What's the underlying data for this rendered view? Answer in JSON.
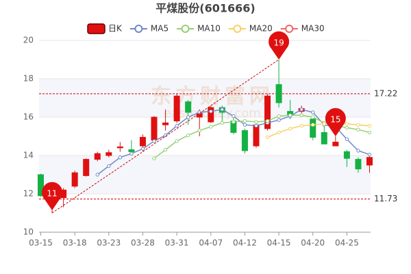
{
  "chart_data": {
    "type": "candlestick",
    "title": "平煤股份(601666)",
    "watermark": "东方财富网",
    "watermark_sub": "eastmoney.com",
    "categories": [
      "03-15",
      null,
      null,
      "03-18",
      null,
      null,
      "03-23",
      null,
      null,
      "03-28",
      null,
      null,
      "03-31",
      null,
      null,
      "04-07",
      null,
      null,
      "04-12",
      null,
      null,
      "04-15",
      null,
      null,
      "04-20",
      null,
      null,
      "04-25",
      null,
      null
    ],
    "candle_name": "日K",
    "up_color": "#e01010",
    "down_color": "#14b143",
    "candles": [
      {
        "open": 13.0,
        "close": 11.9,
        "low": 11.85,
        "high": 13.05
      },
      {
        "open": 11.9,
        "close": 12.2,
        "low": 11,
        "high": 12.4
      },
      {
        "open": 11.8,
        "close": 12.2,
        "low": 11.3,
        "high": 12.3
      },
      {
        "open": 12.4,
        "close": 13.1,
        "low": 12.3,
        "high": 13.2
      },
      {
        "open": 12.95,
        "close": 13.8,
        "low": 12.9,
        "high": 13.85
      },
      {
        "open": 13.8,
        "close": 14.1,
        "low": 13.7,
        "high": 14.2
      },
      {
        "open": 14.0,
        "close": 14.15,
        "low": 13.9,
        "high": 14.3
      },
      {
        "open": 14.4,
        "close": 14.45,
        "low": 14.2,
        "high": 14.7
      },
      {
        "open": 14.3,
        "close": 14.2,
        "low": 14.0,
        "high": 14.8
      },
      {
        "open": 14.5,
        "close": 14.95,
        "low": 14.2,
        "high": 15.1
      },
      {
        "open": 14.8,
        "close": 16.0,
        "low": 14.7,
        "high": 16.05
      },
      {
        "open": 15.6,
        "close": 15.7,
        "low": 15.3,
        "high": 16.4
      },
      {
        "open": 15.8,
        "close": 17.1,
        "low": 15.7,
        "high": 17.2
      },
      {
        "open": 16.8,
        "close": 16.25,
        "low": 15.6,
        "high": 16.9
      },
      {
        "open": 16.0,
        "close": 16.2,
        "low": 15.0,
        "high": 16.4
      },
      {
        "open": 15.75,
        "close": 16.5,
        "low": 15.7,
        "high": 16.6
      },
      {
        "open": 16.5,
        "close": 16.25,
        "low": 15.7,
        "high": 16.6
      },
      {
        "open": 15.8,
        "close": 15.2,
        "low": 15.1,
        "high": 16.0
      },
      {
        "open": 15.3,
        "close": 14.25,
        "low": 14.1,
        "high": 15.4
      },
      {
        "open": 14.5,
        "close": 15.6,
        "low": 14.4,
        "high": 15.7
      },
      {
        "open": 15.4,
        "close": 17.1,
        "low": 15.3,
        "high": 17.2
      },
      {
        "open": 17.7,
        "close": 16.75,
        "low": 16.5,
        "high": 19
      },
      {
        "open": 16.3,
        "close": 16.1,
        "low": 15.9,
        "high": 16.9
      },
      {
        "open": 16.3,
        "close": 16.45,
        "low": 16.2,
        "high": 16.6
      },
      {
        "open": 15.9,
        "close": 14.95,
        "low": 14.8,
        "high": 16.0
      },
      {
        "open": 15.2,
        "close": 14.6,
        "low": 14.6,
        "high": 15.5
      },
      {
        "open": 14.5,
        "close": 14.7,
        "low": 14.5,
        "high": 15
      },
      {
        "open": 14.2,
        "close": 13.85,
        "low": 13.4,
        "high": 14.3
      },
      {
        "open": 13.8,
        "close": 13.3,
        "low": 13.1,
        "high": 13.9
      },
      {
        "open": 13.5,
        "close": 13.9,
        "low": 13.1,
        "high": 14.0
      }
    ],
    "series": [
      {
        "name": "MA5",
        "color": "#7088c4",
        "values": [
          null,
          null,
          null,
          null,
          null,
          13.0,
          13.45,
          13.9,
          14.1,
          14.35,
          14.75,
          15.05,
          15.55,
          16.0,
          16.25,
          16.3,
          16.4,
          16.05,
          15.6,
          15.55,
          15.7,
          15.85,
          16.05,
          16.4,
          16.25,
          15.6,
          15.5,
          14.85,
          14.25,
          14.05
        ]
      },
      {
        "name": "MA10",
        "color": "#93cf76",
        "values": [
          null,
          null,
          null,
          null,
          null,
          null,
          null,
          null,
          null,
          null,
          13.85,
          14.3,
          14.75,
          15.05,
          15.3,
          15.5,
          15.7,
          15.75,
          15.8,
          15.75,
          15.8,
          16.05,
          16.1,
          16.1,
          16.0,
          15.7,
          15.55,
          15.45,
          15.35,
          15.2
        ]
      },
      {
        "name": "MA20",
        "color": "#f8cf60",
        "values": [
          null,
          null,
          null,
          null,
          null,
          null,
          null,
          null,
          null,
          null,
          null,
          null,
          null,
          null,
          null,
          null,
          null,
          null,
          null,
          null,
          14.95,
          15.2,
          15.4,
          15.55,
          15.6,
          15.65,
          15.7,
          15.65,
          15.6,
          15.55
        ]
      },
      {
        "name": "MA30",
        "color": "#ee6666",
        "values": [
          null,
          null,
          null,
          null,
          null,
          null,
          null,
          null,
          null,
          null,
          null,
          null,
          null,
          null,
          null,
          null,
          null,
          null,
          null,
          null,
          null,
          null,
          null,
          null,
          null,
          null,
          null,
          null,
          null,
          null
        ]
      }
    ],
    "mark_lines": [
      17.22,
      11.73
    ],
    "mark_line_color": "#cc0000",
    "mark_points": [
      {
        "value": 19,
        "at": "high"
      },
      {
        "value": 11,
        "at": "low"
      },
      {
        "value": 15,
        "at": "high"
      }
    ],
    "mark_point_color": "#e01010",
    "ylim": [
      10,
      20
    ],
    "yticks": [
      10,
      12,
      14,
      16,
      18,
      20
    ],
    "grid": true
  }
}
